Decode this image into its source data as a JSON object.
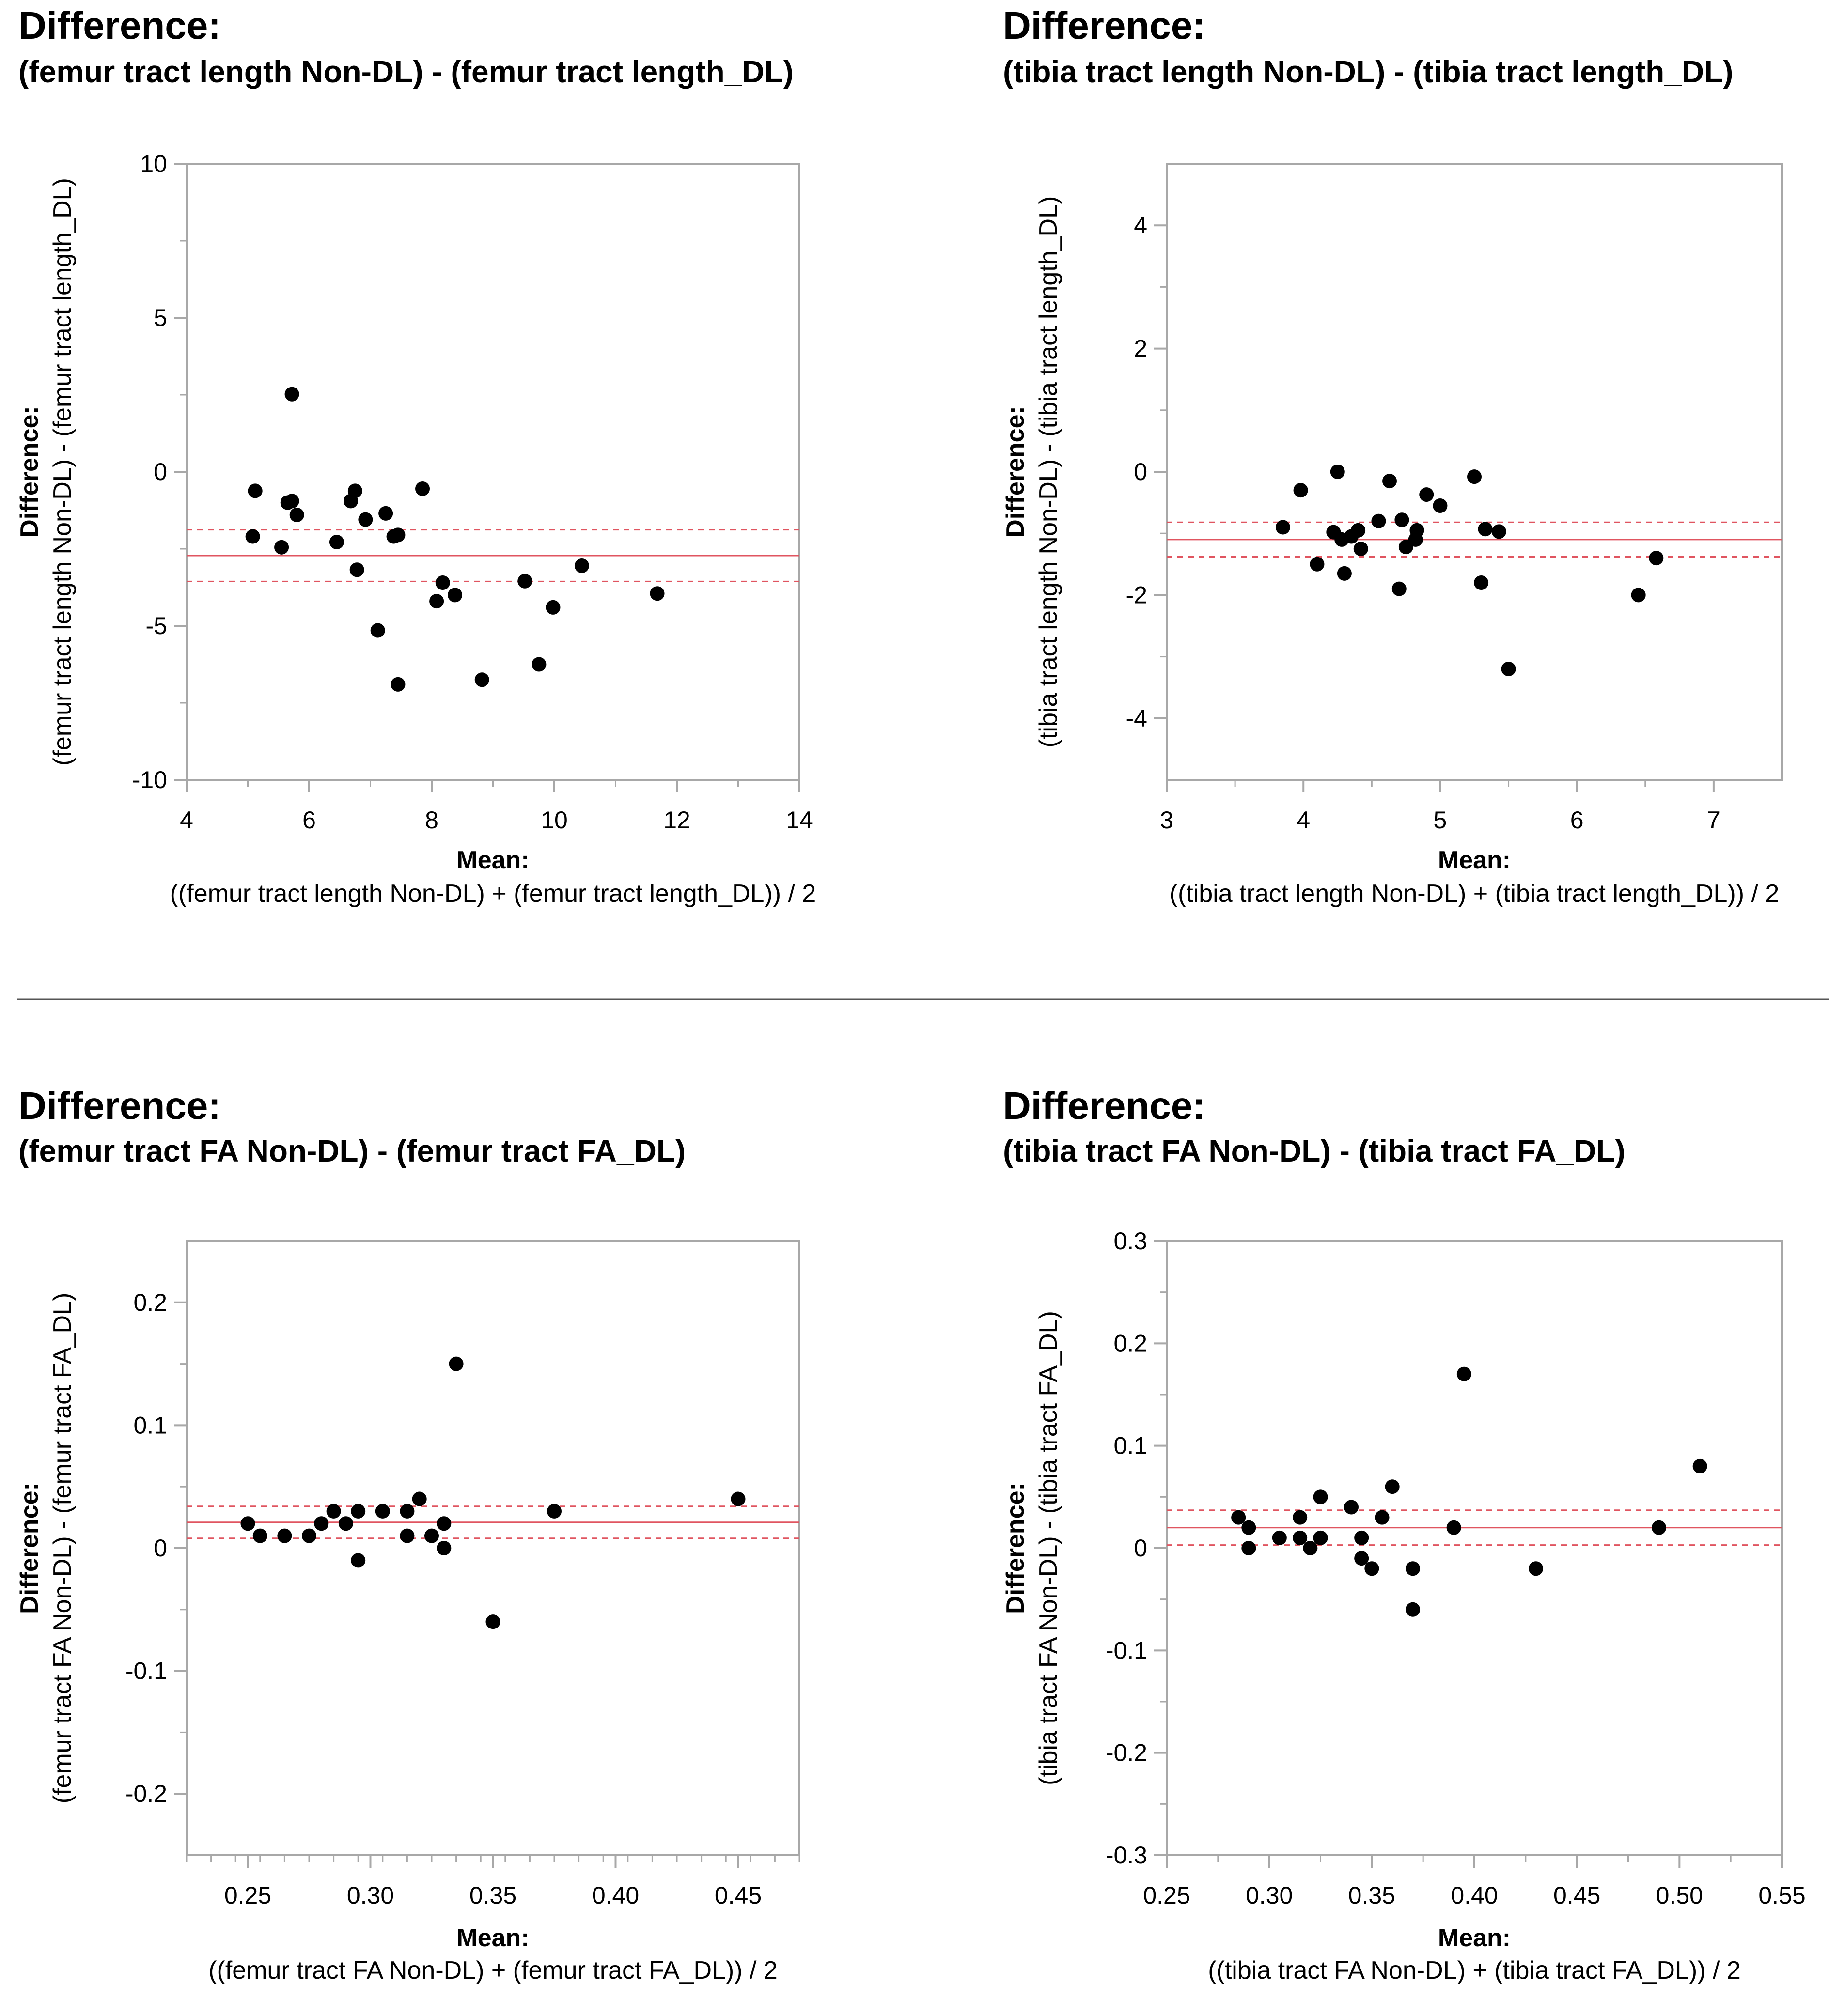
{
  "chart_data": [
    {
      "type": "scatter",
      "title": "Difference:",
      "subtitle": "(femur tract length Non-DL) - (femur tract length_DL)",
      "xlabel_head": "Mean:",
      "xlabel": "((femur tract length Non-DL) + (femur tract length_DL)) / 2",
      "ylabel_head": "Difference:",
      "ylabel": "(femur tract length Non-DL) - (femur tract length_DL)",
      "xlim": [
        4,
        14
      ],
      "ylim": [
        -10,
        10
      ],
      "xticks": [
        4,
        6,
        8,
        10,
        12,
        14
      ],
      "yticks": [
        -10,
        -5,
        0,
        5,
        10
      ],
      "xtick_labels": [
        "4",
        "6",
        "8",
        "10",
        "12",
        "14"
      ],
      "ytick_labels": [
        "-10",
        "-5",
        "0",
        "5",
        "10"
      ],
      "xminor": [
        5,
        7,
        9,
        11,
        13
      ],
      "yminor": [
        -7.5,
        -2.5,
        2.5,
        7.5
      ],
      "mean_diff": -2.72,
      "ci": [
        -1.88,
        -3.56
      ],
      "grid": false,
      "points": [
        {
          "x": 5.08,
          "y": -2.1
        },
        {
          "x": 5.12,
          "y": -0.62
        },
        {
          "x": 5.55,
          "y": -2.45
        },
        {
          "x": 5.65,
          "y": -1.0
        },
        {
          "x": 5.72,
          "y": -0.95
        },
        {
          "x": 5.72,
          "y": 2.52
        },
        {
          "x": 5.8,
          "y": -1.4
        },
        {
          "x": 6.45,
          "y": -2.28
        },
        {
          "x": 6.68,
          "y": -0.95
        },
        {
          "x": 6.75,
          "y": -0.62
        },
        {
          "x": 6.78,
          "y": -3.18
        },
        {
          "x": 6.92,
          "y": -1.55
        },
        {
          "x": 7.12,
          "y": -5.15
        },
        {
          "x": 7.25,
          "y": -1.35
        },
        {
          "x": 7.38,
          "y": -2.1
        },
        {
          "x": 7.45,
          "y": -2.05
        },
        {
          "x": 7.45,
          "y": -6.9
        },
        {
          "x": 7.85,
          "y": -0.55
        },
        {
          "x": 8.08,
          "y": -4.2
        },
        {
          "x": 8.18,
          "y": -3.6
        },
        {
          "x": 8.38,
          "y": -4.0
        },
        {
          "x": 8.82,
          "y": -6.75
        },
        {
          "x": 9.52,
          "y": -3.55
        },
        {
          "x": 9.75,
          "y": -6.25
        },
        {
          "x": 9.98,
          "y": -4.4
        },
        {
          "x": 10.45,
          "y": -3.05
        },
        {
          "x": 11.68,
          "y": -3.95
        }
      ]
    },
    {
      "type": "scatter",
      "title": "Difference:",
      "subtitle": "(tibia tract length Non-DL) - (tibia tract length_DL)",
      "xlabel_head": "Mean:",
      "xlabel": "((tibia tract length Non-DL) + (tibia tract length_DL)) / 2",
      "ylabel_head": "Difference:",
      "ylabel": "(tibia tract length Non-DL) - (tibia tract length_DL)",
      "xlim": [
        3,
        7.5
      ],
      "ylim": [
        -5,
        5
      ],
      "xticks": [
        3,
        4,
        5,
        6,
        7
      ],
      "yticks": [
        -4,
        -2,
        0,
        2,
        4
      ],
      "xtick_labels": [
        "3",
        "4",
        "5",
        "6",
        "7"
      ],
      "ytick_labels": [
        "-4",
        "-2",
        "0",
        "2",
        "4"
      ],
      "xminor": [
        3.5,
        4.5,
        5.5,
        6.5
      ],
      "yminor": [
        -3,
        -1,
        1,
        3
      ],
      "mean_diff": -1.1,
      "ci": [
        -0.82,
        -1.38
      ],
      "grid": false,
      "points": [
        {
          "x": 3.85,
          "y": -0.9
        },
        {
          "x": 3.98,
          "y": -0.3
        },
        {
          "x": 4.1,
          "y": -1.5
        },
        {
          "x": 4.22,
          "y": -0.98
        },
        {
          "x": 4.25,
          "y": 0.0
        },
        {
          "x": 4.28,
          "y": -1.1
        },
        {
          "x": 4.3,
          "y": -1.65
        },
        {
          "x": 4.35,
          "y": -1.05
        },
        {
          "x": 4.4,
          "y": -0.95
        },
        {
          "x": 4.42,
          "y": -1.25
        },
        {
          "x": 4.55,
          "y": -0.8
        },
        {
          "x": 4.63,
          "y": -0.15
        },
        {
          "x": 4.7,
          "y": -1.9
        },
        {
          "x": 4.72,
          "y": -0.78
        },
        {
          "x": 4.75,
          "y": -1.22
        },
        {
          "x": 4.82,
          "y": -1.1
        },
        {
          "x": 4.83,
          "y": -0.95
        },
        {
          "x": 4.9,
          "y": -0.37
        },
        {
          "x": 5.0,
          "y": -0.55
        },
        {
          "x": 5.25,
          "y": -0.08
        },
        {
          "x": 5.3,
          "y": -1.8
        },
        {
          "x": 5.33,
          "y": -0.93
        },
        {
          "x": 5.43,
          "y": -0.97
        },
        {
          "x": 5.5,
          "y": -3.2
        },
        {
          "x": 6.45,
          "y": -2.0
        },
        {
          "x": 6.58,
          "y": -1.4
        }
      ]
    },
    {
      "type": "scatter",
      "title": "Difference:",
      "subtitle": "(femur tract FA Non-DL) - (femur tract FA_DL)",
      "xlabel_head": "Mean:",
      "xlabel": "((femur tract FA Non-DL) + (femur tract FA_DL)) / 2",
      "ylabel_head": "Difference:",
      "ylabel": "(femur tract FA Non-DL) - (femur tract FA_DL)",
      "xlim": [
        0.225,
        0.475
      ],
      "ylim": [
        -0.25,
        0.25
      ],
      "xticks": [
        0.25,
        0.3,
        0.35,
        0.4,
        0.45
      ],
      "yticks": [
        -0.2,
        -0.1,
        0,
        0.1,
        0.2
      ],
      "xtick_labels": [
        "0.25",
        "0.30",
        "0.35",
        "0.40",
        "0.45"
      ],
      "ytick_labels": [
        "-0.2",
        "-0.1",
        "0",
        "0.1",
        "0.2"
      ],
      "xminor": [
        0.225,
        0.235,
        0.245,
        0.255,
        0.265,
        0.275,
        0.285,
        0.295,
        0.305,
        0.315,
        0.325,
        0.335,
        0.345,
        0.355,
        0.365,
        0.375,
        0.385,
        0.395,
        0.405,
        0.415,
        0.425,
        0.435,
        0.445,
        0.455,
        0.465,
        0.475
      ],
      "yminor": [
        -0.15,
        -0.05,
        0.05,
        0.15
      ],
      "mean_diff": 0.021,
      "ci": [
        0.034,
        0.008
      ],
      "grid": false,
      "points": [
        {
          "x": 0.25,
          "y": 0.02
        },
        {
          "x": 0.255,
          "y": 0.01
        },
        {
          "x": 0.265,
          "y": 0.01
        },
        {
          "x": 0.275,
          "y": 0.01
        },
        {
          "x": 0.28,
          "y": 0.02
        },
        {
          "x": 0.285,
          "y": 0.03
        },
        {
          "x": 0.29,
          "y": 0.02
        },
        {
          "x": 0.295,
          "y": 0.03
        },
        {
          "x": 0.295,
          "y": -0.01
        },
        {
          "x": 0.305,
          "y": 0.03
        },
        {
          "x": 0.315,
          "y": 0.03
        },
        {
          "x": 0.315,
          "y": 0.01
        },
        {
          "x": 0.32,
          "y": 0.04
        },
        {
          "x": 0.325,
          "y": 0.01
        },
        {
          "x": 0.33,
          "y": 0.02
        },
        {
          "x": 0.33,
          "y": 0.0
        },
        {
          "x": 0.335,
          "y": 0.15
        },
        {
          "x": 0.35,
          "y": -0.06
        },
        {
          "x": 0.375,
          "y": 0.03
        },
        {
          "x": 0.45,
          "y": 0.04
        }
      ]
    },
    {
      "type": "scatter",
      "title": "Difference:",
      "subtitle": "(tibia tract FA Non-DL) - (tibia tract FA_DL)",
      "xlabel_head": "Mean:",
      "xlabel": "((tibia tract FA Non-DL) + (tibia tract FA_DL)) / 2",
      "ylabel_head": "Difference:",
      "ylabel": "(tibia tract FA Non-DL) - (tibia tract FA_DL)",
      "xlim": [
        0.25,
        0.55
      ],
      "ylim": [
        -0.3,
        0.3
      ],
      "xticks": [
        0.25,
        0.3,
        0.35,
        0.4,
        0.45,
        0.5,
        0.55
      ],
      "yticks": [
        -0.3,
        -0.2,
        -0.1,
        0,
        0.1,
        0.2,
        0.3
      ],
      "xtick_labels": [
        "0.25",
        "0.30",
        "0.35",
        "0.40",
        "0.45",
        "0.50",
        "0.55"
      ],
      "ytick_labels": [
        "-0.3",
        "-0.2",
        "-0.1",
        "0",
        "0.1",
        "0.2",
        "0.3"
      ],
      "xminor": [
        0.275,
        0.325,
        0.375,
        0.425,
        0.475,
        0.525
      ],
      "yminor": [
        -0.25,
        -0.15,
        -0.05,
        0.05,
        0.15,
        0.25
      ],
      "mean_diff": 0.02,
      "ci": [
        0.037,
        0.003
      ],
      "grid": false,
      "points": [
        {
          "x": 0.285,
          "y": 0.03
        },
        {
          "x": 0.29,
          "y": 0.02
        },
        {
          "x": 0.29,
          "y": 0.0
        },
        {
          "x": 0.305,
          "y": 0.01
        },
        {
          "x": 0.315,
          "y": 0.03
        },
        {
          "x": 0.315,
          "y": 0.01
        },
        {
          "x": 0.32,
          "y": 0.0
        },
        {
          "x": 0.325,
          "y": 0.05
        },
        {
          "x": 0.325,
          "y": 0.01
        },
        {
          "x": 0.34,
          "y": 0.04
        },
        {
          "x": 0.345,
          "y": 0.01
        },
        {
          "x": 0.345,
          "y": -0.01
        },
        {
          "x": 0.35,
          "y": -0.02
        },
        {
          "x": 0.355,
          "y": 0.03
        },
        {
          "x": 0.36,
          "y": 0.06
        },
        {
          "x": 0.37,
          "y": -0.02
        },
        {
          "x": 0.37,
          "y": -0.06
        },
        {
          "x": 0.39,
          "y": 0.02
        },
        {
          "x": 0.395,
          "y": 0.17
        },
        {
          "x": 0.43,
          "y": -0.02
        },
        {
          "x": 0.49,
          "y": 0.02
        },
        {
          "x": 0.51,
          "y": 0.08
        }
      ]
    }
  ],
  "colors": {
    "points": "#000000",
    "frame": "#a8a8a8",
    "mean_line": "#e05560",
    "ci_line": "#e05560",
    "separator": "#555555"
  }
}
